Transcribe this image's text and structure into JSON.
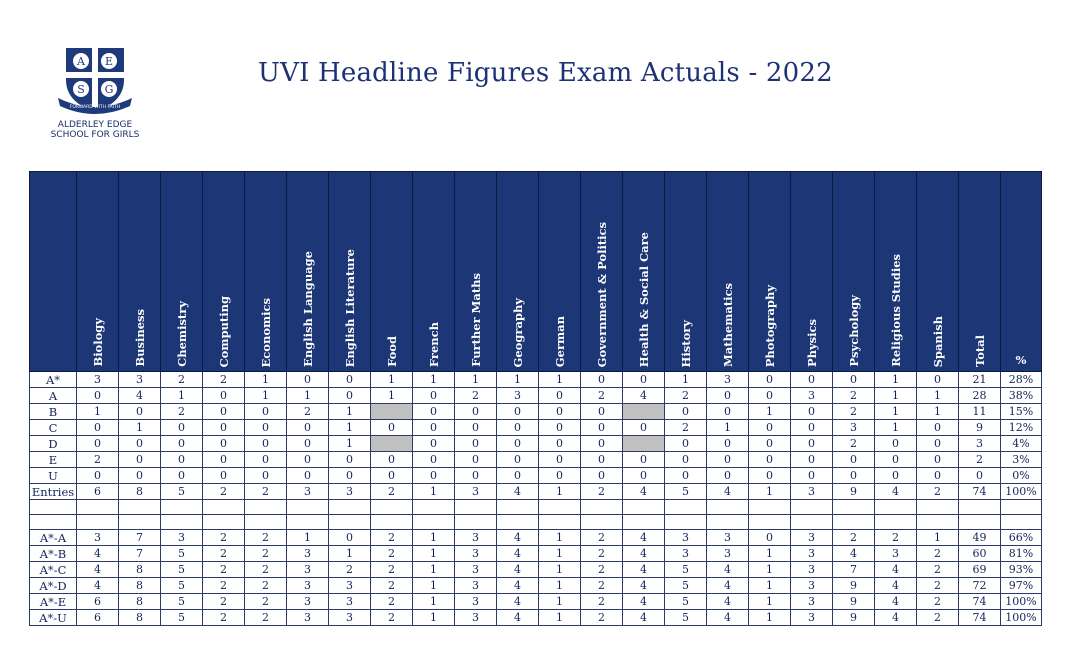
{
  "school": {
    "crest_letters": [
      "A",
      "E",
      "S",
      "G"
    ],
    "motto": "FORWARD WITH FAITH",
    "name_line1": "ALDERLEY EDGE",
    "name_line2": "SCHOOL FOR GIRLS"
  },
  "title": "UVI Headline Figures Exam Actuals - 2022",
  "columns": [
    "Biology",
    "Business",
    "Chemistry",
    "Computing",
    "Economics",
    "English Language",
    "English Literature",
    "Food",
    "French",
    "Further Maths",
    "Geography",
    "German",
    "Government & Politics",
    "Health & Social Care",
    "History",
    "Mathematics",
    "Photography",
    "Physics",
    "Psychology",
    "Religious Studies",
    "Spanish",
    "Total",
    "%"
  ],
  "grade_rows": [
    {
      "label": "A*",
      "cells": [
        "3",
        "3",
        "2",
        "2",
        "1",
        "0",
        "0",
        "1",
        "1",
        "1",
        "1",
        "1",
        "0",
        "0",
        "1",
        "3",
        "0",
        "0",
        "0",
        "1",
        "0",
        "21",
        "28%"
      ]
    },
    {
      "label": "A",
      "cells": [
        "0",
        "4",
        "1",
        "0",
        "1",
        "1",
        "0",
        "1",
        "0",
        "2",
        "3",
        "0",
        "2",
        "4",
        "2",
        "0",
        "0",
        "3",
        "2",
        "1",
        "1",
        "28",
        "38%"
      ]
    },
    {
      "label": "B",
      "cells": [
        "1",
        "0",
        "2",
        "0",
        "0",
        "2",
        "1",
        "",
        "0",
        "0",
        "0",
        "0",
        "0",
        "",
        "0",
        "0",
        "1",
        "0",
        "2",
        "1",
        "1",
        "11",
        "15%"
      ]
    },
    {
      "label": "C",
      "cells": [
        "0",
        "1",
        "0",
        "0",
        "0",
        "0",
        "1",
        "0",
        "0",
        "0",
        "0",
        "0",
        "0",
        "0",
        "2",
        "1",
        "0",
        "0",
        "3",
        "1",
        "0",
        "9",
        "12%"
      ]
    },
    {
      "label": "D",
      "cells": [
        "0",
        "0",
        "0",
        "0",
        "0",
        "0",
        "1",
        "",
        "0",
        "0",
        "0",
        "0",
        "0",
        "",
        "0",
        "0",
        "0",
        "0",
        "2",
        "0",
        "0",
        "3",
        "4%"
      ]
    },
    {
      "label": "E",
      "cells": [
        "2",
        "0",
        "0",
        "0",
        "0",
        "0",
        "0",
        "0",
        "0",
        "0",
        "0",
        "0",
        "0",
        "0",
        "0",
        "0",
        "0",
        "0",
        "0",
        "0",
        "0",
        "2",
        "3%"
      ]
    },
    {
      "label": "U",
      "cells": [
        "0",
        "0",
        "0",
        "0",
        "0",
        "0",
        "0",
        "0",
        "0",
        "0",
        "0",
        "0",
        "0",
        "0",
        "0",
        "0",
        "0",
        "0",
        "0",
        "0",
        "0",
        "0",
        "0%"
      ]
    },
    {
      "label": "Entries",
      "cells": [
        "6",
        "8",
        "5",
        "2",
        "2",
        "3",
        "3",
        "2",
        "1",
        "3",
        "4",
        "1",
        "2",
        "4",
        "5",
        "4",
        "1",
        "3",
        "9",
        "4",
        "2",
        "74",
        "100%"
      ]
    }
  ],
  "grey_cells": [
    [
      2,
      7
    ],
    [
      2,
      13
    ],
    [
      4,
      7
    ],
    [
      4,
      13
    ]
  ],
  "cumulative_rows": [
    {
      "label": "A*-A",
      "cells": [
        "3",
        "7",
        "3",
        "2",
        "2",
        "1",
        "0",
        "2",
        "1",
        "3",
        "4",
        "1",
        "2",
        "4",
        "3",
        "3",
        "0",
        "3",
        "2",
        "2",
        "1",
        "49",
        "66%"
      ]
    },
    {
      "label": "A*-B",
      "cells": [
        "4",
        "7",
        "5",
        "2",
        "2",
        "3",
        "1",
        "2",
        "1",
        "3",
        "4",
        "1",
        "2",
        "4",
        "3",
        "3",
        "1",
        "3",
        "4",
        "3",
        "2",
        "60",
        "81%"
      ]
    },
    {
      "label": "A*-C",
      "cells": [
        "4",
        "8",
        "5",
        "2",
        "2",
        "3",
        "2",
        "2",
        "1",
        "3",
        "4",
        "1",
        "2",
        "4",
        "5",
        "4",
        "1",
        "3",
        "7",
        "4",
        "2",
        "69",
        "93%"
      ]
    },
    {
      "label": "A*-D",
      "cells": [
        "4",
        "8",
        "5",
        "2",
        "2",
        "3",
        "3",
        "2",
        "1",
        "3",
        "4",
        "1",
        "2",
        "4",
        "5",
        "4",
        "1",
        "3",
        "9",
        "4",
        "2",
        "72",
        "97%"
      ]
    },
    {
      "label": "A*-E",
      "cells": [
        "6",
        "8",
        "5",
        "2",
        "2",
        "3",
        "3",
        "2",
        "1",
        "3",
        "4",
        "1",
        "2",
        "4",
        "5",
        "4",
        "1",
        "3",
        "9",
        "4",
        "2",
        "74",
        "100%"
      ]
    },
    {
      "label": "A*-U",
      "cells": [
        "6",
        "8",
        "5",
        "2",
        "2",
        "3",
        "3",
        "2",
        "1",
        "3",
        "4",
        "1",
        "2",
        "4",
        "5",
        "4",
        "1",
        "3",
        "9",
        "4",
        "2",
        "74",
        "100%"
      ]
    }
  ],
  "colors": {
    "header_bg": "#1c3676",
    "text": "#14245a",
    "grey_cell": "#c0c0c0"
  }
}
